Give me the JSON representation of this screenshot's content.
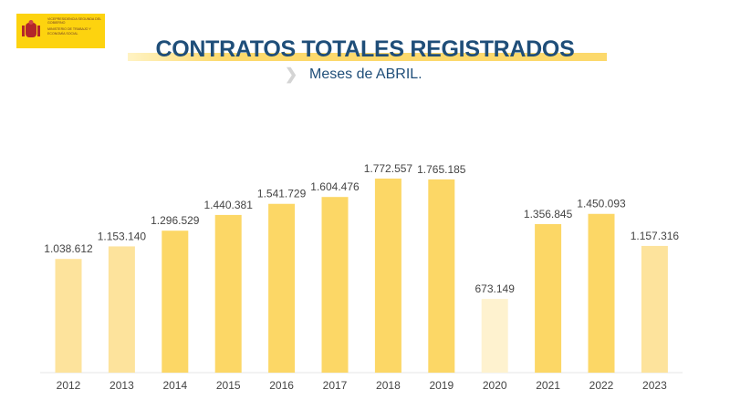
{
  "logo": {
    "line1": "VICEPRESIDENCIA SEGUNDA DEL GOBIERNO",
    "line2": "MINISTERIO DE TRABAJO Y ECONOMÍA SOCIAL"
  },
  "chart_data": {
    "type": "bar",
    "title": "CONTRATOS TOTALES REGISTRADOS",
    "subtitle": "Meses de ABRIL.",
    "xlabel": "",
    "ylabel": "",
    "ylim": [
      0,
      1772557
    ],
    "grid": false,
    "categories": [
      "2012",
      "2013",
      "2014",
      "2015",
      "2016",
      "2017",
      "2018",
      "2019",
      "2020",
      "2021",
      "2022",
      "2023"
    ],
    "values": [
      1038612,
      1153140,
      1296529,
      1440381,
      1541729,
      1604476,
      1772557,
      1765185,
      673149,
      1356845,
      1450093,
      1157316
    ],
    "data_labels": [
      "1.038.612",
      "1.153.140",
      "1.296.529",
      "1.440.381",
      "1.541.729",
      "1.604.476",
      "1.772.557",
      "1.765.185",
      "673.149",
      "1.356.845",
      "1.450.093",
      "1.157.316"
    ],
    "colors": [
      "#FDE39C",
      "#FDE39C",
      "#FCD766",
      "#FCD766",
      "#FCD766",
      "#FCD766",
      "#FCD766",
      "#FCD766",
      "#FEF2CF",
      "#FCD766",
      "#FCD766",
      "#FDE39C"
    ]
  }
}
